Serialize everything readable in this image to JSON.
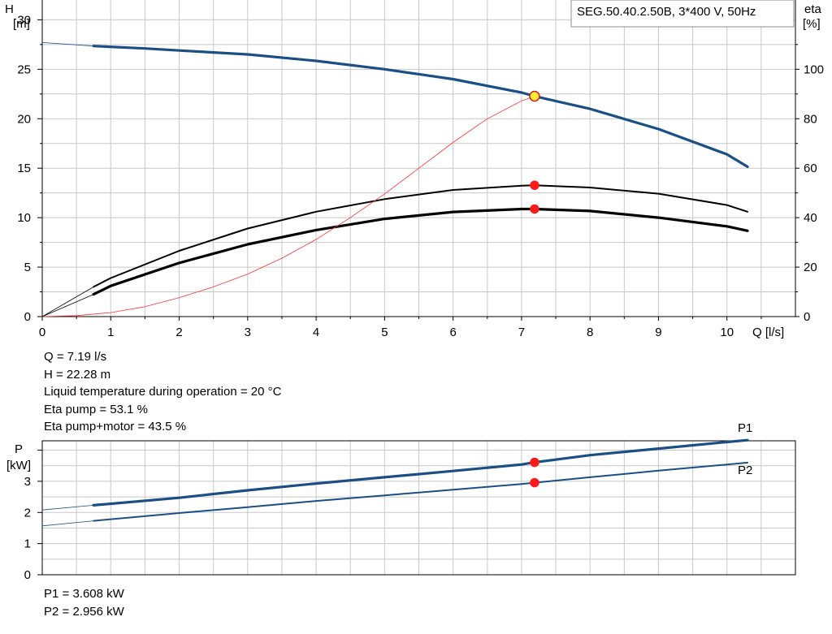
{
  "chart_data": [
    {
      "type": "line",
      "title": "SEG.50.40.2.50B, 3*400 V, 50Hz",
      "xlabel": "Q [l/s]",
      "ylabel_left": [
        "H",
        "[m]"
      ],
      "ylabel_right": [
        "eta",
        "[%]"
      ],
      "xlim": [
        0,
        11
      ],
      "ylim_left": [
        0,
        32
      ],
      "ylim_right": [
        0,
        128
      ],
      "x_ticks": [
        0,
        1,
        2,
        3,
        4,
        5,
        6,
        7,
        8,
        9,
        10
      ],
      "y_ticks_left": [
        0,
        5,
        10,
        15,
        20,
        25,
        30
      ],
      "y_ticks_right": [
        0,
        20,
        40,
        60,
        80,
        100
      ],
      "grid": true,
      "series": [
        {
          "axis": "left",
          "color": "#1a4f86",
          "x": [
            0.75,
            1.5,
            2,
            3,
            4,
            5,
            6,
            7,
            7.19,
            8,
            9,
            10,
            10.3
          ],
          "y": [
            27.35,
            27.1,
            26.9,
            26.5,
            25.85,
            25.0,
            24.0,
            22.65,
            22.28,
            21.0,
            18.95,
            16.4,
            15.15
          ],
          "extension": {
            "x": [
              0,
              0.75
            ],
            "y": [
              27.7,
              27.35
            ]
          },
          "width": 3.2
        },
        {
          "axis": "right",
          "color": "#000000",
          "x": [
            0.75,
            1,
            2,
            3,
            4,
            5,
            6,
            7,
            7.19,
            8,
            9,
            10,
            10.3
          ],
          "y": [
            12.0,
            15.6,
            26.6,
            35.6,
            42.4,
            47.5,
            51.2,
            52.9,
            53.1,
            52.2,
            49.7,
            45.1,
            42.4
          ],
          "extension": {
            "x": [
              0,
              0.75
            ],
            "y": [
              0,
              12.0
            ]
          },
          "width": 2
        },
        {
          "axis": "right",
          "color": "#000000",
          "x": [
            0.75,
            1,
            2,
            3,
            4,
            5,
            6,
            7,
            7.19,
            8,
            9,
            10,
            10.3
          ],
          "y": [
            9.0,
            12.4,
            21.7,
            29.2,
            35.0,
            39.5,
            42.3,
            43.5,
            43.5,
            42.7,
            40.0,
            36.5,
            34.7
          ],
          "extension": {
            "x": [
              0,
              0.75
            ],
            "y": [
              0,
              9.0
            ]
          },
          "width": 3.2
        },
        {
          "axis": "left",
          "color": "#ff3333",
          "x": [
            0,
            0.5,
            1,
            1.5,
            2,
            2.5,
            3,
            3.5,
            4,
            4.5,
            5,
            5.5,
            6,
            6.5,
            7,
            7.19
          ],
          "y": [
            0,
            0.1,
            0.4,
            1.0,
            1.9,
            3.0,
            4.3,
            5.9,
            7.8,
            10.0,
            12.4,
            15.0,
            17.6,
            20.0,
            21.8,
            22.28
          ],
          "width": 0.8
        }
      ],
      "markers": [
        {
          "x": 7.19,
          "y": 22.28,
          "axis": "left",
          "fill": "#ffee33",
          "stroke": "#d62020"
        },
        {
          "x": 7.19,
          "y": 53.1,
          "axis": "right",
          "fill": "#ff1a1a",
          "stroke": "#ff1a1a"
        },
        {
          "x": 7.19,
          "y": 43.5,
          "axis": "right",
          "fill": "#ff1a1a",
          "stroke": "#ff1a1a"
        }
      ]
    },
    {
      "type": "line",
      "title": "",
      "xlabel": "",
      "ylabel_left": [
        "P",
        "[kW]"
      ],
      "xlim": [
        0,
        11
      ],
      "ylim": [
        0,
        4.3
      ],
      "y_ticks": [
        0,
        1,
        2,
        3
      ],
      "grid": true,
      "series": [
        {
          "name": "P1",
          "color": "#1a4f86",
          "x": [
            0.75,
            2,
            3,
            4,
            5,
            6,
            7,
            7.19,
            8,
            9,
            10,
            10.3
          ],
          "y": [
            2.23,
            2.47,
            2.71,
            2.93,
            3.13,
            3.33,
            3.54,
            3.608,
            3.84,
            4.05,
            4.26,
            4.32
          ],
          "extension": {
            "x": [
              0,
              0.75
            ],
            "y": [
              2.08,
              2.23
            ]
          },
          "width": 3.2
        },
        {
          "name": "P2",
          "color": "#1a4f86",
          "x": [
            0.75,
            2,
            3,
            4,
            5,
            6,
            7,
            7.19,
            8,
            9,
            10,
            10.3
          ],
          "y": [
            1.73,
            1.98,
            2.17,
            2.37,
            2.55,
            2.73,
            2.91,
            2.956,
            3.13,
            3.34,
            3.54,
            3.6
          ],
          "extension": {
            "x": [
              0,
              0.75
            ],
            "y": [
              1.57,
              1.73
            ]
          },
          "width": 2
        }
      ],
      "markers": [
        {
          "x": 7.19,
          "y": 3.608,
          "fill": "#ff1a1a",
          "stroke": "#ff1a1a"
        },
        {
          "x": 7.19,
          "y": 2.956,
          "fill": "#ff1a1a",
          "stroke": "#ff1a1a"
        }
      ]
    }
  ],
  "results_top": [
    "Q = 7.19 l/s",
    "H = 22.28 m",
    "Liquid temperature during operation = 20 °C",
    "Eta pump = 53.1 %",
    "Eta pump+motor = 43.5 %"
  ],
  "results_bottom": [
    "P1 = 3.608 kW",
    "P2 = 2.956 kW"
  ]
}
